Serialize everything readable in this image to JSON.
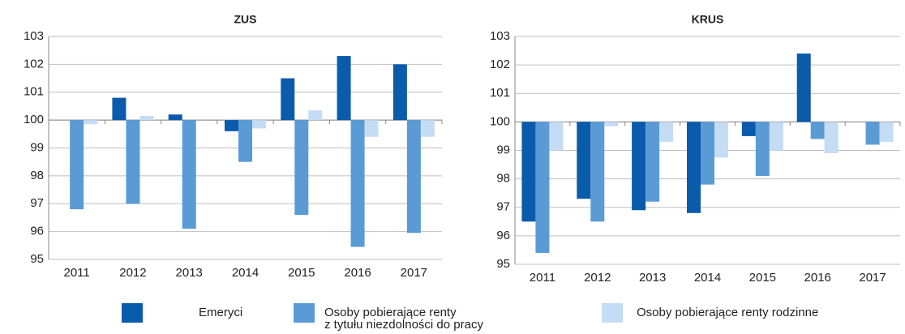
{
  "chart_data": [
    {
      "type": "bar",
      "title": "ZUS",
      "categories": [
        "2011",
        "2012",
        "2013",
        "2014",
        "2015",
        "2016",
        "2017"
      ],
      "series": [
        {
          "name": "Emeryci",
          "color": "#0a5bab",
          "values": [
            null,
            100.8,
            100.2,
            99.6,
            101.5,
            102.3,
            102.0
          ]
        },
        {
          "name": "Osoby pobierające renty\nz tytułu niezdolności do pracy",
          "color": "#5b9bd5",
          "values": [
            96.8,
            97.0,
            96.1,
            98.5,
            96.6,
            95.45,
            95.95
          ]
        },
        {
          "name": "Osoby pobierające renty rodzinne",
          "color": "#c5dcf5",
          "values": [
            99.85,
            100.15,
            null,
            99.7,
            100.35,
            99.4,
            99.4
          ]
        }
      ],
      "ylim": [
        95,
        103
      ],
      "yticks": [
        95,
        96,
        97,
        98,
        99,
        100,
        101,
        102,
        103
      ],
      "baseline": 100,
      "grid": true
    },
    {
      "type": "bar",
      "title": "KRUS",
      "categories": [
        "2011",
        "2012",
        "2013",
        "2014",
        "2015",
        "2016",
        "2017"
      ],
      "series": [
        {
          "name": "Emeryci",
          "color": "#0a5bab",
          "values": [
            96.5,
            97.3,
            96.9,
            96.8,
            99.5,
            102.4,
            null
          ]
        },
        {
          "name": "Osoby pobierające renty\nz tytułu niezdolności do pracy",
          "color": "#5b9bd5",
          "values": [
            95.4,
            96.5,
            97.2,
            97.8,
            98.1,
            99.4,
            99.2
          ]
        },
        {
          "name": "Osoby pobierające renty rodzinne",
          "color": "#c5dcf5",
          "values": [
            99.0,
            99.85,
            99.3,
            98.75,
            99.0,
            98.9,
            99.3
          ]
        }
      ],
      "ylim": [
        95,
        103
      ],
      "yticks": [
        95,
        96,
        97,
        98,
        99,
        100,
        101,
        102,
        103
      ],
      "baseline": 100,
      "grid": true
    }
  ]
}
